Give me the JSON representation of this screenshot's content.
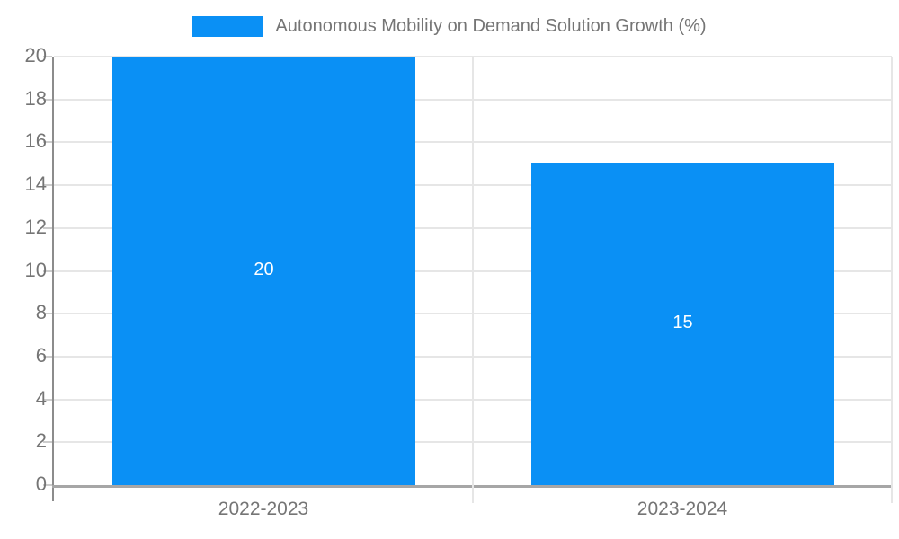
{
  "chart_data": {
    "type": "bar",
    "title": "Autonomous Mobility on Demand Solution Growth (%)",
    "categories": [
      "2022-2023",
      "2023-2024"
    ],
    "series": [
      {
        "name": "Autonomous Mobility on Demand Solution Growth (%)",
        "values": [
          20,
          15
        ]
      }
    ],
    "value_labels": [
      "20",
      "15"
    ],
    "xlabel": "",
    "ylabel": "",
    "ylim": [
      0,
      20
    ],
    "yticks": [
      0,
      2,
      4,
      6,
      8,
      10,
      12,
      14,
      16,
      18,
      20
    ],
    "grid": "horizontal and category-boundary vertical lines",
    "legend_position": "top-center"
  },
  "colors": {
    "bar": "#0a90f5",
    "grid": "#e6e6e6",
    "axis_text": "#757575",
    "axis_line_left": "#8c8c8c",
    "axis_line_bottom": "#a6a6a6",
    "tick": "#cccccc",
    "value_label": "#ffffff",
    "background": "#ffffff"
  }
}
